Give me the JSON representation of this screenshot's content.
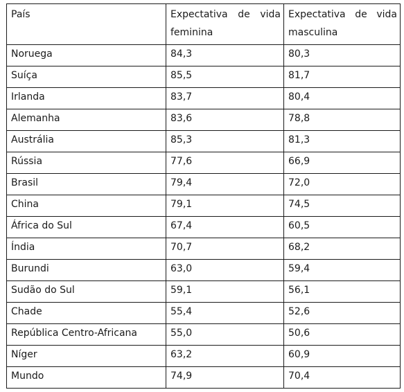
{
  "table": {
    "headers": [
      "País",
      "Expectativa de vida feminina",
      "Expectativa de vida masculina"
    ],
    "rows": [
      [
        "Noruega",
        "84,3",
        "80,3"
      ],
      [
        "Suíça",
        "85,5",
        "81,7"
      ],
      [
        "Irlanda",
        "83,7",
        "80,4"
      ],
      [
        "Alemanha",
        "83,6",
        "78,8"
      ],
      [
        "Austrália",
        "85,3",
        "81,3"
      ],
      [
        "Rússia",
        "77,6",
        "66,9"
      ],
      [
        "Brasil",
        "79,4",
        "72,0"
      ],
      [
        "China",
        "79,1",
        "74,5"
      ],
      [
        "África do Sul",
        "67,4",
        "60,5"
      ],
      [
        "Índia",
        "70,7",
        "68,2"
      ],
      [
        "Burundi",
        "63,0",
        "59,4"
      ],
      [
        "Sudão do Sul",
        "59,1",
        "56,1"
      ],
      [
        "Chade",
        "55,4",
        "52,6"
      ],
      [
        "República Centro-Africana",
        "55,0",
        "50,6"
      ],
      [
        "Níger",
        "63,2",
        "60,9"
      ],
      [
        "Mundo",
        "74,9",
        "70,4"
      ]
    ]
  }
}
